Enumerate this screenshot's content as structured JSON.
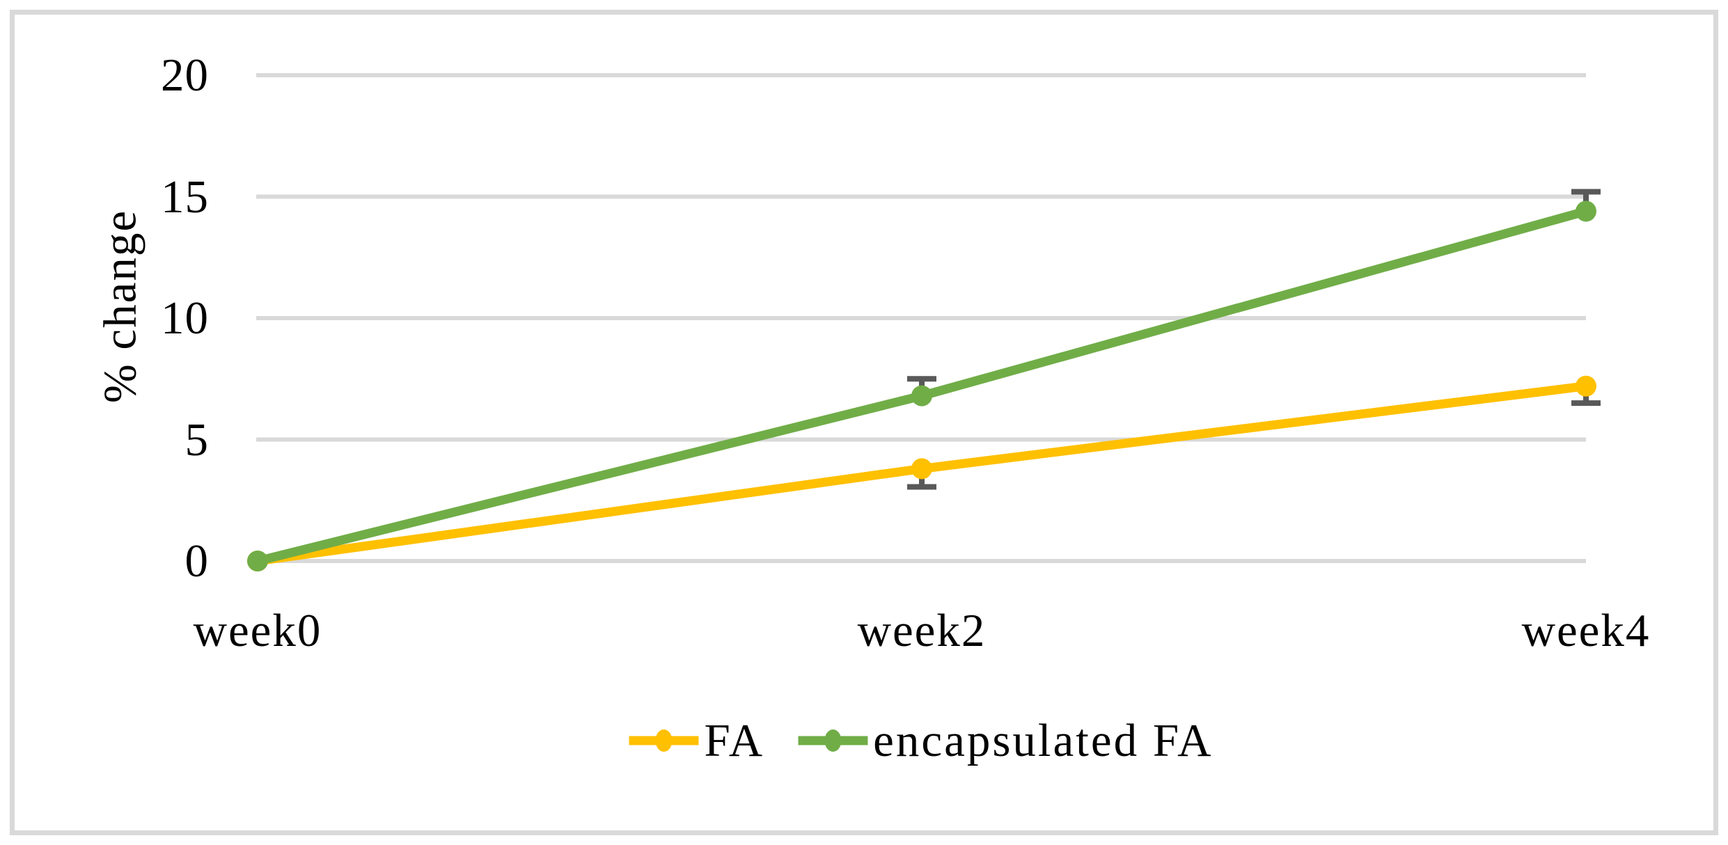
{
  "figure": {
    "background": "#ffffff",
    "border_color": "#d9d9d9"
  },
  "chart_data": {
    "type": "line",
    "categories": [
      "week0",
      "week2",
      "week4"
    ],
    "series": [
      {
        "name": "FA",
        "color": "#FFC000",
        "values": [
          0,
          3.8,
          7.2
        ],
        "error": {
          "direction": "minus",
          "values": [
            0,
            0.75,
            0.7
          ]
        }
      },
      {
        "name": "encapsulated FA",
        "color": "#70AD47",
        "values": [
          0,
          6.8,
          14.4
        ],
        "error": {
          "direction": "plus",
          "values": [
            0,
            0.7,
            0.8
          ]
        }
      }
    ],
    "title": "",
    "xlabel": "",
    "ylabel": "% change",
    "ylim": [
      0,
      20
    ],
    "yticks": [
      0,
      5,
      10,
      15,
      20
    ],
    "grid": "horizontal",
    "gridline_color": "#d9d9d9",
    "error_bar_color": "#595959",
    "legend_position": "bottom-center"
  }
}
